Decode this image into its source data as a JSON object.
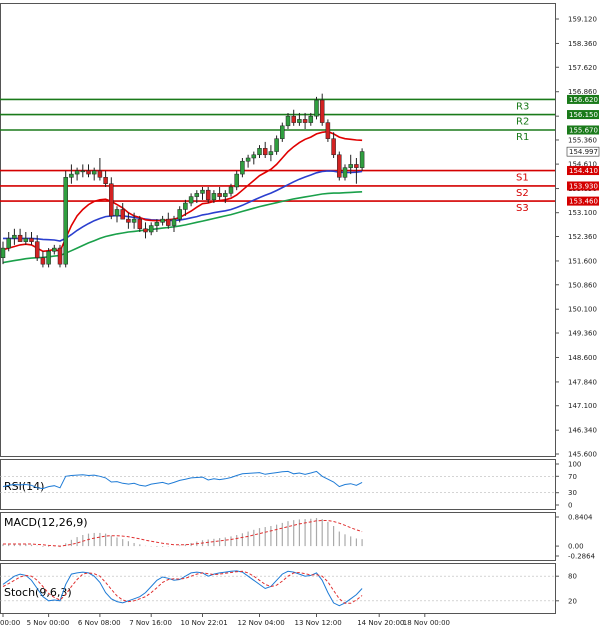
{
  "chart_data": {
    "type": "candlestick",
    "symbol_hint": "USD/JPY",
    "price_axis": {
      "min": 145.6,
      "max": 159.12,
      "ticks": [
        159.12,
        158.36,
        157.62,
        156.86,
        156.1,
        155.36,
        154.61,
        153.85,
        153.1,
        152.36,
        151.6,
        150.86,
        150.1,
        149.36,
        148.6,
        147.84,
        147.1,
        146.34,
        145.6
      ],
      "tick_labels": [
        "159.120",
        "158.360",
        "157.620",
        "156.860",
        "156.100",
        "155.360",
        "154.610",
        "153.850",
        "153.100",
        "152.360",
        "151.600",
        "150.860",
        "150.100",
        "149.360",
        "148.600",
        "147.840",
        "147.100",
        "146.340",
        "145.600"
      ]
    },
    "time_axis": {
      "labels": [
        "00:00",
        "5 Nov 00:00",
        "6 Nov 08:00",
        "7 Nov 16:00",
        "10 Nov 22:01",
        "12 Nov 04:00",
        "13 Nov 12:00",
        "14 Nov 20:00",
        "18 Nov 00:00"
      ],
      "label_bars": [
        0,
        8,
        17,
        26,
        35,
        45,
        55,
        66,
        74
      ]
    },
    "current_price": {
      "label": "154.997",
      "value": 154.997
    },
    "levels": [
      {
        "name": "R3",
        "value": 156.62,
        "label": "156.620",
        "color": "#1a7a1a"
      },
      {
        "name": "R2",
        "value": 156.15,
        "label": "156.150",
        "color": "#1a7a1a"
      },
      {
        "name": "R1",
        "value": 155.67,
        "label": "155.670",
        "color": "#1a7a1a"
      },
      {
        "name": "S1",
        "value": 154.41,
        "label": "154.410",
        "color": "#d40000"
      },
      {
        "name": "S2",
        "value": 153.93,
        "label": "153.930",
        "color": "#d40000"
      },
      {
        "name": "S3",
        "value": 153.46,
        "label": "153.460",
        "color": "#d40000"
      }
    ],
    "candles": [
      {
        "o": 151.7,
        "h": 152.2,
        "l": 151.5,
        "c": 152.0
      },
      {
        "o": 152.0,
        "h": 152.5,
        "l": 151.9,
        "c": 152.3
      },
      {
        "o": 152.3,
        "h": 152.6,
        "l": 152.1,
        "c": 152.4
      },
      {
        "o": 152.4,
        "h": 152.6,
        "l": 152.2,
        "c": 152.2
      },
      {
        "o": 152.2,
        "h": 152.5,
        "l": 152.1,
        "c": 152.3
      },
      {
        "o": 152.3,
        "h": 152.5,
        "l": 152.1,
        "c": 152.2
      },
      {
        "o": 152.2,
        "h": 152.4,
        "l": 151.6,
        "c": 151.7
      },
      {
        "o": 151.7,
        "h": 151.9,
        "l": 151.4,
        "c": 151.5
      },
      {
        "o": 151.5,
        "h": 152.0,
        "l": 151.4,
        "c": 151.9
      },
      {
        "o": 151.9,
        "h": 152.1,
        "l": 151.8,
        "c": 152.0
      },
      {
        "o": 152.0,
        "h": 152.1,
        "l": 151.4,
        "c": 151.5
      },
      {
        "o": 151.5,
        "h": 154.4,
        "l": 151.4,
        "c": 154.2
      },
      {
        "o": 154.2,
        "h": 154.6,
        "l": 154.0,
        "c": 154.3
      },
      {
        "o": 154.3,
        "h": 154.5,
        "l": 154.1,
        "c": 154.4
      },
      {
        "o": 154.4,
        "h": 154.6,
        "l": 154.2,
        "c": 154.4
      },
      {
        "o": 154.4,
        "h": 154.6,
        "l": 154.2,
        "c": 154.3
      },
      {
        "o": 154.3,
        "h": 154.5,
        "l": 154.1,
        "c": 154.4
      },
      {
        "o": 154.4,
        "h": 154.8,
        "l": 154.1,
        "c": 154.2
      },
      {
        "o": 154.2,
        "h": 154.4,
        "l": 153.9,
        "c": 154.0
      },
      {
        "o": 154.0,
        "h": 154.2,
        "l": 152.9,
        "c": 153.0
      },
      {
        "o": 153.0,
        "h": 153.3,
        "l": 152.8,
        "c": 153.2
      },
      {
        "o": 153.2,
        "h": 153.4,
        "l": 152.9,
        "c": 152.9
      },
      {
        "o": 152.9,
        "h": 153.1,
        "l": 152.6,
        "c": 152.8
      },
      {
        "o": 152.8,
        "h": 153.1,
        "l": 152.6,
        "c": 152.9
      },
      {
        "o": 152.9,
        "h": 153.0,
        "l": 152.5,
        "c": 152.6
      },
      {
        "o": 152.6,
        "h": 152.8,
        "l": 152.3,
        "c": 152.5
      },
      {
        "o": 152.5,
        "h": 152.8,
        "l": 152.4,
        "c": 152.7
      },
      {
        "o": 152.7,
        "h": 152.9,
        "l": 152.5,
        "c": 152.8
      },
      {
        "o": 152.8,
        "h": 153.0,
        "l": 152.7,
        "c": 152.9
      },
      {
        "o": 152.9,
        "h": 153.1,
        "l": 152.6,
        "c": 152.7
      },
      {
        "o": 152.7,
        "h": 153.0,
        "l": 152.5,
        "c": 152.9
      },
      {
        "o": 152.9,
        "h": 153.3,
        "l": 152.8,
        "c": 153.2
      },
      {
        "o": 153.2,
        "h": 153.5,
        "l": 153.0,
        "c": 153.4
      },
      {
        "o": 153.4,
        "h": 153.7,
        "l": 153.3,
        "c": 153.6
      },
      {
        "o": 153.6,
        "h": 153.8,
        "l": 153.4,
        "c": 153.7
      },
      {
        "o": 153.7,
        "h": 153.9,
        "l": 153.5,
        "c": 153.8
      },
      {
        "o": 153.8,
        "h": 153.9,
        "l": 153.4,
        "c": 153.5
      },
      {
        "o": 153.5,
        "h": 153.8,
        "l": 153.4,
        "c": 153.7
      },
      {
        "o": 153.7,
        "h": 153.9,
        "l": 153.5,
        "c": 153.6
      },
      {
        "o": 153.6,
        "h": 153.8,
        "l": 153.4,
        "c": 153.7
      },
      {
        "o": 153.7,
        "h": 154.0,
        "l": 153.6,
        "c": 153.9
      },
      {
        "o": 153.9,
        "h": 154.4,
        "l": 153.8,
        "c": 154.3
      },
      {
        "o": 154.3,
        "h": 154.8,
        "l": 154.2,
        "c": 154.7
      },
      {
        "o": 154.7,
        "h": 154.9,
        "l": 154.5,
        "c": 154.8
      },
      {
        "o": 154.8,
        "h": 155.0,
        "l": 154.6,
        "c": 154.9
      },
      {
        "o": 154.9,
        "h": 155.2,
        "l": 154.8,
        "c": 155.1
      },
      {
        "o": 155.1,
        "h": 155.3,
        "l": 154.8,
        "c": 154.9
      },
      {
        "o": 154.9,
        "h": 155.2,
        "l": 154.7,
        "c": 155.0
      },
      {
        "o": 155.0,
        "h": 155.5,
        "l": 154.9,
        "c": 155.4
      },
      {
        "o": 155.4,
        "h": 155.9,
        "l": 155.3,
        "c": 155.8
      },
      {
        "o": 155.8,
        "h": 156.2,
        "l": 155.7,
        "c": 156.1
      },
      {
        "o": 156.1,
        "h": 156.3,
        "l": 155.8,
        "c": 155.9
      },
      {
        "o": 155.9,
        "h": 156.2,
        "l": 155.8,
        "c": 156.0
      },
      {
        "o": 156.0,
        "h": 156.2,
        "l": 155.7,
        "c": 155.9
      },
      {
        "o": 155.9,
        "h": 156.2,
        "l": 155.8,
        "c": 156.1
      },
      {
        "o": 156.1,
        "h": 156.7,
        "l": 156.0,
        "c": 156.6
      },
      {
        "o": 156.6,
        "h": 156.8,
        "l": 155.8,
        "c": 155.9
      },
      {
        "o": 155.9,
        "h": 156.0,
        "l": 155.3,
        "c": 155.4
      },
      {
        "o": 155.4,
        "h": 155.6,
        "l": 154.8,
        "c": 154.9
      },
      {
        "o": 154.9,
        "h": 155.0,
        "l": 154.1,
        "c": 154.2
      },
      {
        "o": 154.2,
        "h": 154.6,
        "l": 154.1,
        "c": 154.5
      },
      {
        "o": 154.5,
        "h": 154.9,
        "l": 154.3,
        "c": 154.6
      },
      {
        "o": 154.6,
        "h": 154.8,
        "l": 154.0,
        "c": 154.5
      },
      {
        "o": 154.5,
        "h": 155.1,
        "l": 154.4,
        "c": 155.0
      }
    ],
    "ma_fast_color": "#e00000",
    "ma_mid_color": "#2b3fcf",
    "ma_slow_color": "#1aa04a",
    "ma_fast": [
      151.95,
      152.0,
      152.05,
      152.1,
      152.12,
      152.1,
      152.0,
      151.9,
      151.92,
      151.96,
      151.9,
      152.3,
      152.7,
      153.0,
      153.2,
      153.35,
      153.45,
      153.5,
      153.52,
      153.45,
      153.35,
      153.25,
      153.1,
      153.0,
      152.95,
      152.88,
      152.86,
      152.85,
      152.86,
      152.88,
      152.9,
      152.95,
      153.05,
      153.15,
      153.27,
      153.38,
      153.4,
      153.45,
      153.48,
      153.5,
      153.55,
      153.65,
      153.8,
      153.95,
      154.1,
      154.25,
      154.35,
      154.45,
      154.6,
      154.8,
      155.0,
      155.15,
      155.28,
      155.38,
      155.45,
      155.55,
      155.6,
      155.62,
      155.55,
      155.45,
      155.4,
      155.38,
      155.36,
      155.35
    ],
    "ma_mid": [
      152.3,
      152.3,
      152.3,
      152.3,
      152.3,
      152.3,
      152.29,
      152.27,
      152.26,
      152.25,
      152.22,
      152.3,
      152.42,
      152.55,
      152.66,
      152.76,
      152.85,
      152.92,
      152.98,
      153.0,
      153.01,
      153.0,
      152.98,
      152.95,
      152.93,
      152.9,
      152.88,
      152.87,
      152.86,
      152.86,
      152.86,
      152.87,
      152.9,
      152.94,
      152.98,
      153.03,
      153.06,
      153.1,
      153.13,
      153.16,
      153.2,
      153.26,
      153.33,
      153.41,
      153.49,
      153.57,
      153.64,
      153.71,
      153.79,
      153.88,
      153.97,
      154.06,
      154.14,
      154.21,
      154.27,
      154.34,
      154.38,
      154.4,
      154.39,
      154.36,
      154.35,
      154.35,
      154.36,
      154.38
    ],
    "ma_slow": [
      151.55,
      151.58,
      151.61,
      151.64,
      151.67,
      151.69,
      151.7,
      151.71,
      151.73,
      151.75,
      151.77,
      151.84,
      151.92,
      152.0,
      152.08,
      152.16,
      152.23,
      152.3,
      152.36,
      152.4,
      152.44,
      152.47,
      152.5,
      152.52,
      152.54,
      152.56,
      152.58,
      152.6,
      152.62,
      152.64,
      152.66,
      152.69,
      152.72,
      152.76,
      152.8,
      152.84,
      152.88,
      152.92,
      152.96,
      153.0,
      153.04,
      153.09,
      153.14,
      153.19,
      153.24,
      153.29,
      153.33,
      153.37,
      153.41,
      153.45,
      153.49,
      153.53,
      153.56,
      153.59,
      153.62,
      153.65,
      153.68,
      153.7,
      153.71,
      153.71,
      153.72,
      153.73,
      153.74,
      153.75
    ],
    "indicators": [
      {
        "name": "RSI(14)",
        "ticks": [
          "100",
          "70",
          "30",
          "0"
        ],
        "tick_values": [
          100,
          70,
          30,
          0
        ],
        "line_color": "#1e7bd6",
        "values": [
          45,
          48,
          50,
          49,
          50,
          48,
          42,
          40,
          45,
          47,
          42,
          70,
          72,
          73,
          74,
          72,
          73,
          70,
          66,
          56,
          57,
          53,
          51,
          53,
          48,
          46,
          51,
          53,
          55,
          51,
          55,
          60,
          63,
          66,
          67,
          68,
          61,
          64,
          62,
          64,
          67,
          72,
          76,
          77,
          78,
          79,
          75,
          77,
          79,
          81,
          82,
          76,
          78,
          75,
          78,
          82,
          70,
          63,
          56,
          45,
          50,
          52,
          48,
          55
        ]
      },
      {
        "name": "MACD(12,26,9)",
        "ticks": [
          "0.8404",
          "0.00",
          "-0.2864"
        ],
        "tick_values": [
          0.8404,
          0,
          -0.2864
        ],
        "signal_color": "#e03030",
        "hist": [
          0.05,
          0.06,
          0.07,
          0.07,
          0.06,
          0.04,
          0.01,
          -0.02,
          -0.02,
          -0.01,
          -0.03,
          0.08,
          0.18,
          0.26,
          0.32,
          0.36,
          0.38,
          0.38,
          0.36,
          0.3,
          0.25,
          0.2,
          0.14,
          0.09,
          0.05,
          0.01,
          -0.01,
          -0.02,
          -0.02,
          -0.01,
          0.0,
          0.02,
          0.05,
          0.09,
          0.13,
          0.17,
          0.19,
          0.21,
          0.23,
          0.25,
          0.28,
          0.32,
          0.37,
          0.42,
          0.47,
          0.52,
          0.55,
          0.58,
          0.62,
          0.67,
          0.72,
          0.75,
          0.77,
          0.78,
          0.79,
          0.81,
          0.78,
          0.7,
          0.58,
          0.42,
          0.34,
          0.28,
          0.22,
          0.2
        ],
        "signal": [
          0.06,
          0.06,
          0.06,
          0.06,
          0.06,
          0.06,
          0.05,
          0.04,
          0.02,
          0.01,
          0.0,
          0.02,
          0.05,
          0.09,
          0.14,
          0.19,
          0.23,
          0.26,
          0.29,
          0.3,
          0.3,
          0.29,
          0.27,
          0.24,
          0.21,
          0.17,
          0.14,
          0.11,
          0.08,
          0.06,
          0.04,
          0.04,
          0.04,
          0.05,
          0.07,
          0.09,
          0.11,
          0.13,
          0.15,
          0.17,
          0.19,
          0.22,
          0.25,
          0.28,
          0.32,
          0.36,
          0.4,
          0.44,
          0.48,
          0.52,
          0.56,
          0.6,
          0.64,
          0.67,
          0.7,
          0.73,
          0.74,
          0.74,
          0.71,
          0.66,
          0.6,
          0.53,
          0.47,
          0.42
        ]
      },
      {
        "name": "Stoch(9,6,3)",
        "ticks": [
          "80",
          "20"
        ],
        "tick_values": [
          80,
          20
        ],
        "main_color": "#1e7bd6",
        "signal_color": "#e03030",
        "main": [
          60,
          70,
          80,
          85,
          82,
          70,
          50,
          30,
          20,
          22,
          20,
          60,
          85,
          88,
          90,
          88,
          80,
          65,
          40,
          25,
          18,
          15,
          20,
          25,
          30,
          40,
          55,
          70,
          78,
          75,
          70,
          72,
          80,
          88,
          90,
          88,
          80,
          85,
          88,
          90,
          92,
          93,
          90,
          80,
          70,
          60,
          50,
          55,
          70,
          85,
          92,
          90,
          85,
          80,
          82,
          88,
          70,
          40,
          15,
          8,
          15,
          25,
          35,
          50
        ],
        "signal": [
          55,
          62,
          70,
          78,
          82,
          80,
          70,
          55,
          38,
          28,
          22,
          35,
          55,
          72,
          85,
          88,
          86,
          80,
          65,
          48,
          32,
          22,
          18,
          20,
          25,
          30,
          40,
          52,
          65,
          72,
          74,
          73,
          75,
          80,
          85,
          88,
          86,
          84,
          85,
          87,
          89,
          91,
          92,
          88,
          80,
          70,
          60,
          55,
          58,
          68,
          80,
          88,
          89,
          86,
          83,
          84,
          80,
          66,
          45,
          25,
          14,
          14,
          22,
          33
        ]
      }
    ]
  }
}
